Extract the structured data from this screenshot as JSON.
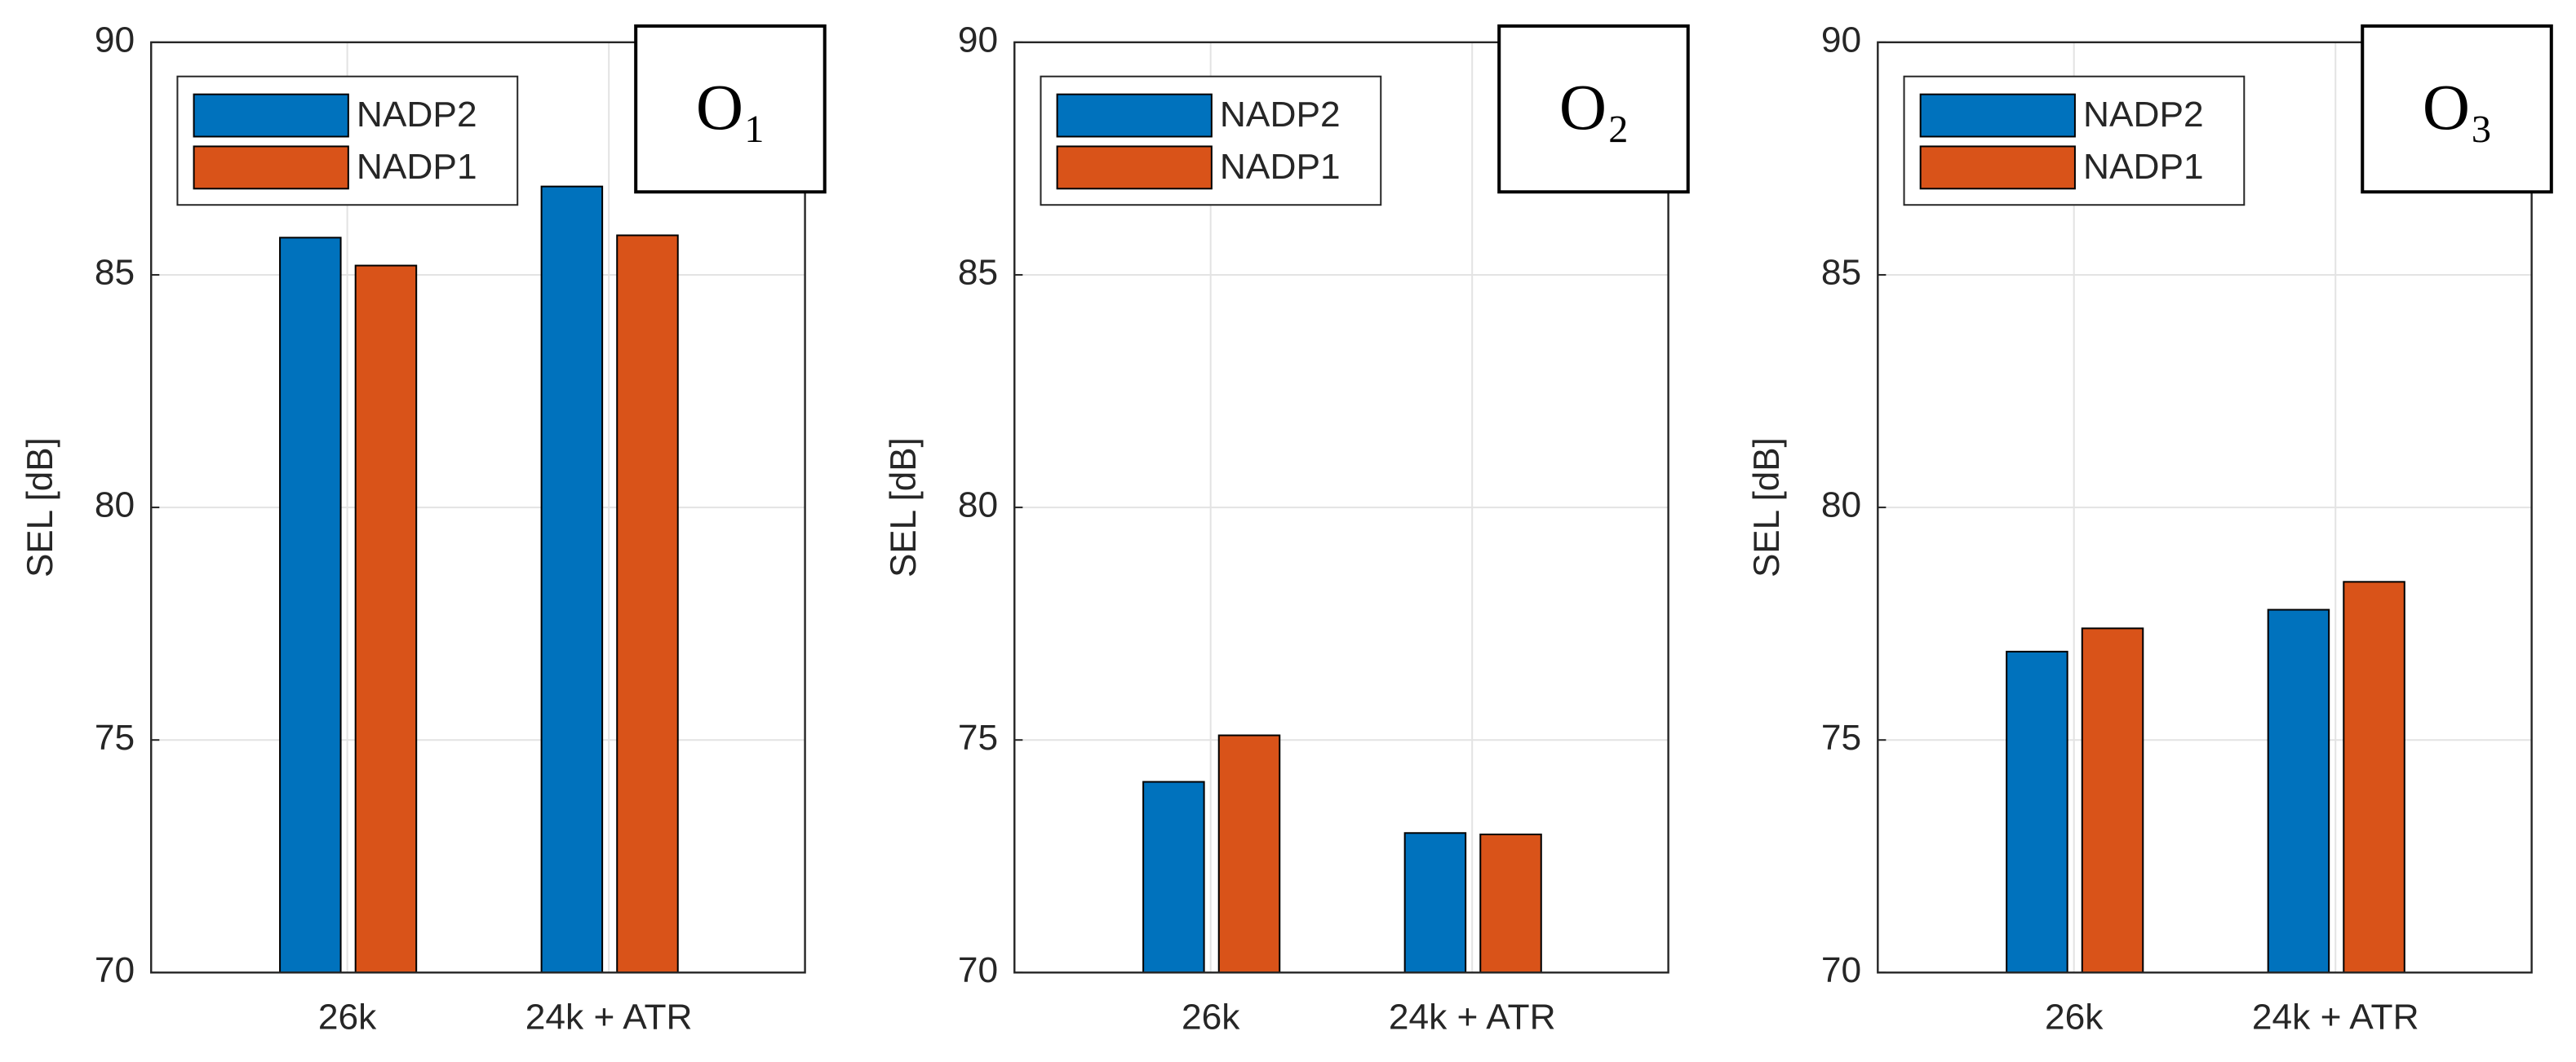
{
  "chart_data": [
    {
      "type": "bar",
      "annotation": "O₁",
      "ylabel": "SEL [dB]",
      "categories": [
        "26k",
        "24k + ATR"
      ],
      "series": [
        {
          "name": "NADP2",
          "color": "#0072BD",
          "values": [
            85.8,
            86.9
          ]
        },
        {
          "name": "NADP1",
          "color": "#D95319",
          "values": [
            85.2,
            85.85
          ]
        }
      ],
      "ylim": [
        70,
        90
      ],
      "yticks": [
        70,
        75,
        80,
        85,
        90
      ],
      "grid": true,
      "legend": "upper left"
    },
    {
      "type": "bar",
      "annotation": "O₂",
      "ylabel": "SEL [dB]",
      "categories": [
        "26k",
        "24k + ATR"
      ],
      "series": [
        {
          "name": "NADP2",
          "color": "#0072BD",
          "values": [
            74.1,
            73.0
          ]
        },
        {
          "name": "NADP1",
          "color": "#D95319",
          "values": [
            75.1,
            72.97
          ]
        }
      ],
      "ylim": [
        70,
        90
      ],
      "yticks": [
        70,
        75,
        80,
        85,
        90
      ],
      "grid": true,
      "legend": "upper left"
    },
    {
      "type": "bar",
      "annotation": "O₃",
      "ylabel": "SEL [dB]",
      "categories": [
        "26k",
        "24k + ATR"
      ],
      "series": [
        {
          "name": "NADP2",
          "color": "#0072BD",
          "values": [
            76.9,
            77.8
          ]
        },
        {
          "name": "NADP1",
          "color": "#D95319",
          "values": [
            77.4,
            78.4
          ]
        }
      ],
      "ylim": [
        70,
        90
      ],
      "yticks": [
        70,
        75,
        80,
        85,
        90
      ],
      "grid": true,
      "legend": "upper left"
    }
  ]
}
